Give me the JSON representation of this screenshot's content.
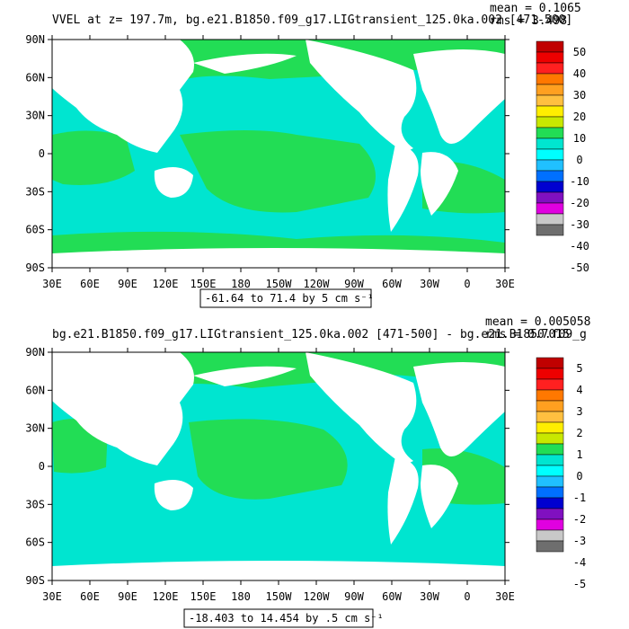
{
  "panels": [
    {
      "title": "VVEL at z= 197.7m, bg.e21.B1850.f09_g17.LIGtransient_125.0ka.002 [471-500]",
      "mean": "mean = 0.1065",
      "rms": "rms = 3.498",
      "range_label": "-61.64 to 71.4 by 5 cm s⁻¹",
      "colorbar_labels": [
        "50",
        "40",
        "30",
        "20",
        "10",
        "0",
        "-10",
        "-20",
        "-30",
        "-40",
        "-50"
      ]
    },
    {
      "title": "bg.e21.B1850.f09_g17.LIGtransient_125.0ka.002 [471-500] - bg.e21.B1850.f09_g",
      "mean": "mean = 0.005058",
      "rms": "rms = 0.7015",
      "range_label": "-18.403 to 14.454 by .5 cm s⁻¹",
      "colorbar_labels": [
        "5",
        "4",
        "3",
        "2",
        "1",
        "0",
        "-1",
        "-2",
        "-3",
        "-4",
        "-5"
      ]
    }
  ],
  "lat_labels": [
    "90N",
    "60N",
    "30N",
    "0",
    "30S",
    "60S",
    "90S"
  ],
  "lon_labels": [
    "30E",
    "60E",
    "90E",
    "120E",
    "150E",
    "180",
    "150W",
    "120W",
    "90W",
    "60W",
    "30W",
    "0",
    "30E"
  ],
  "colors": {
    "land": "#ffffff",
    "ocean_positive": "#22dd55",
    "ocean_negative": "#00e5d0",
    "palette": [
      "#c00000",
      "#ee0000",
      "#ff2020",
      "#ff7800",
      "#ffa020",
      "#ffc040",
      "#ffee00",
      "#c8e800",
      "#22dd55",
      "#00e5d0",
      "#00ffff",
      "#20c0ff",
      "#0070ff",
      "#0000d0",
      "#8010c0",
      "#e000e0",
      "#c8c8c8",
      "#6e6e6e"
    ]
  }
}
